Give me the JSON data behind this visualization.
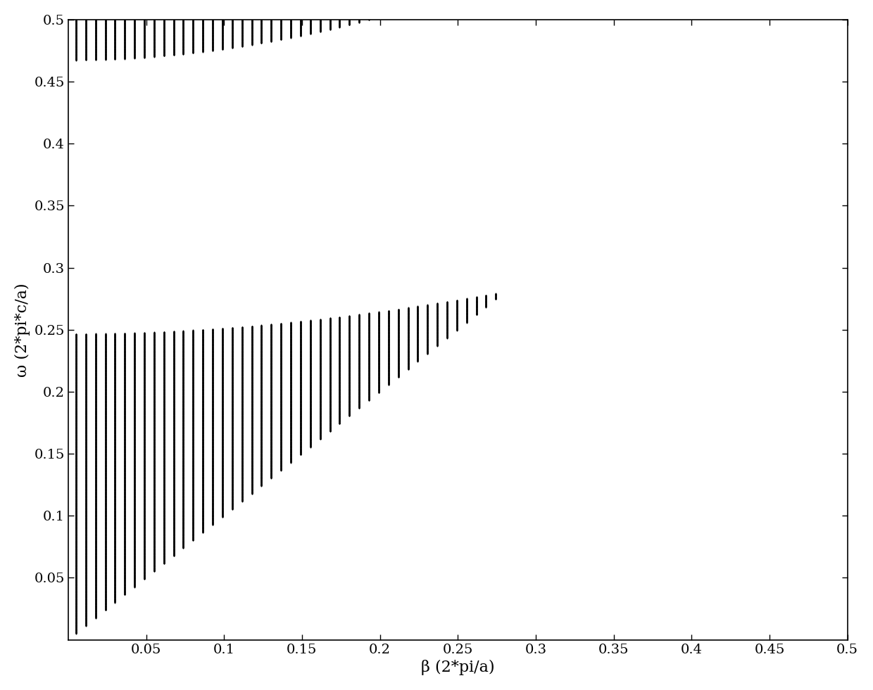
{
  "title": "",
  "xlabel": "β (2*pi/a)",
  "ylabel": "ω (2*pi*c/a)",
  "xlim": [
    0,
    0.5
  ],
  "ylim": [
    0,
    0.5
  ],
  "xticks": [
    0.05,
    0.1,
    0.15,
    0.2,
    0.25,
    0.3,
    0.35,
    0.4,
    0.45,
    0.5
  ],
  "yticks": [
    0.05,
    0.1,
    0.15,
    0.2,
    0.25,
    0.3,
    0.35,
    0.4,
    0.45,
    0.5
  ],
  "dot_color": "#000000",
  "dot_size": 2.0,
  "background_color": "#ffffff",
  "n_high": 2.8,
  "n_low": 1.0,
  "d1": 0.22,
  "d2": 0.78,
  "N_beta": 80,
  "N_omega": 3000,
  "figsize": [
    12.4,
    9.81
  ],
  "dpi": 100
}
